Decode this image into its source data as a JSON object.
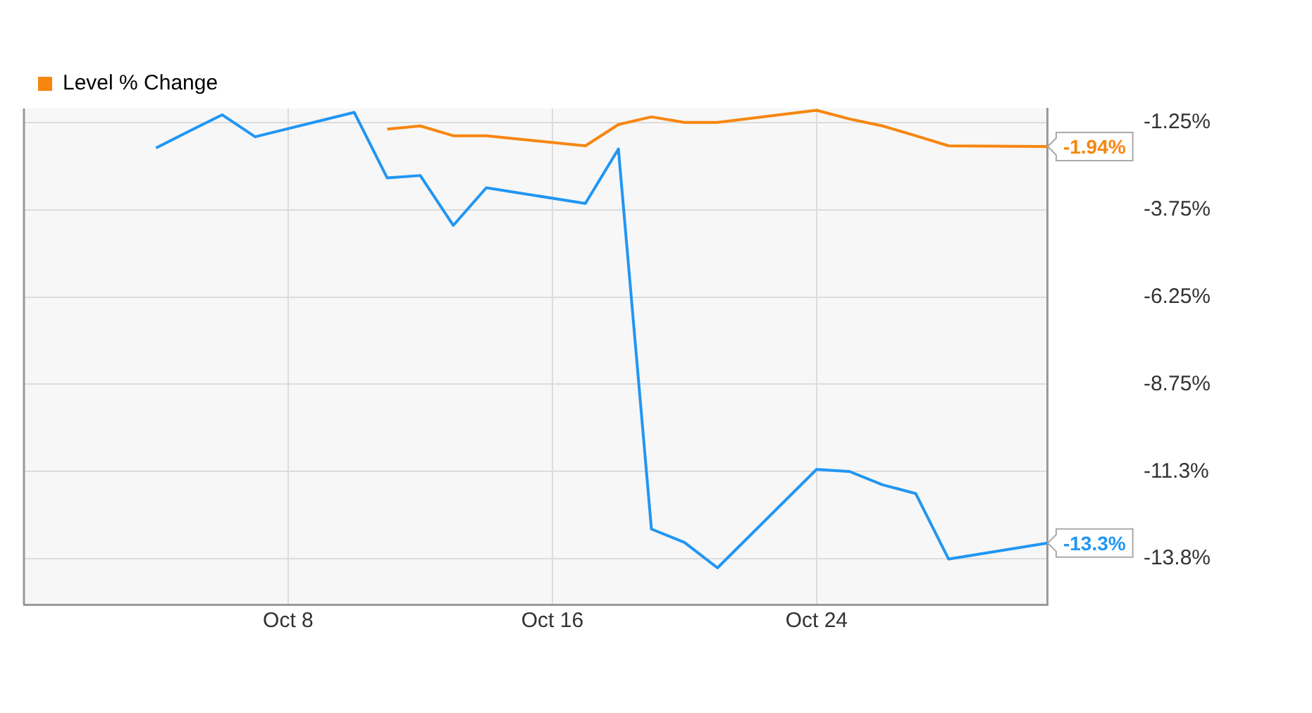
{
  "chart_data": {
    "type": "line",
    "x": [
      "--10-04",
      "--10-05",
      "--10-06",
      "--10-07",
      "--10-10",
      "--10-11",
      "--10-12",
      "--10-13",
      "--10-14",
      "--10-17",
      "--10-18",
      "--10-19",
      "--10-20",
      "--10-21",
      "--10-24",
      "--10-25",
      "--10-26",
      "--10-27",
      "--10-28",
      "--10-31"
    ],
    "series": [
      {
        "color": "#2196f3",
        "values": [
          -1.98,
          -1.5,
          -1.03,
          -1.66,
          -0.96,
          -2.84,
          -2.77,
          -4.2,
          -3.12,
          -3.57,
          -2.01,
          -12.9,
          -13.28,
          -14.01,
          -11.19,
          -11.25,
          -11.63,
          -11.88,
          -13.76,
          -13.3
        ],
        "value_labels": [
          null,
          null,
          null,
          null,
          null,
          null,
          null,
          null,
          null,
          null,
          null,
          null,
          null,
          null,
          null,
          null,
          null,
          null,
          null,
          "-13.3%"
        ]
      },
      {
        "name": "Level % Change",
        "color": "#f7860f",
        "values": [
          null,
          null,
          null,
          null,
          null,
          -1.44,
          -1.35,
          -1.63,
          -1.63,
          -1.92,
          -1.31,
          -1.09,
          -1.25,
          -1.25,
          -0.9,
          -1.15,
          -1.35,
          -1.63,
          -1.92,
          -1.94
        ],
        "value_labels": [
          null,
          null,
          null,
          null,
          null,
          null,
          null,
          null,
          null,
          null,
          null,
          null,
          null,
          null,
          null,
          null,
          null,
          null,
          null,
          "-1.94%"
        ]
      }
    ],
    "xlim": [
      "--09-30",
      "--10-31"
    ],
    "xticks": [
      {
        "value": "--10-08",
        "label": "Oct 8"
      },
      {
        "value": "--10-16",
        "label": "Oct 16"
      },
      {
        "value": "--10-24",
        "label": "Oct 24"
      }
    ],
    "ylim": [
      -15.06,
      -0.85
    ],
    "yticks": [
      {
        "value": -1.25,
        "label": "-1.25%"
      },
      {
        "value": -3.75,
        "label": "-3.75%"
      },
      {
        "value": -6.25,
        "label": "-6.25%"
      },
      {
        "value": -8.75,
        "label": "-8.75%"
      },
      {
        "value": -11.25,
        "label": "-11.3%"
      },
      {
        "value": -13.75,
        "label": "-13.8%"
      }
    ],
    "grid": true,
    "legend": "top left",
    "marker": "none",
    "line_style": "solid"
  }
}
